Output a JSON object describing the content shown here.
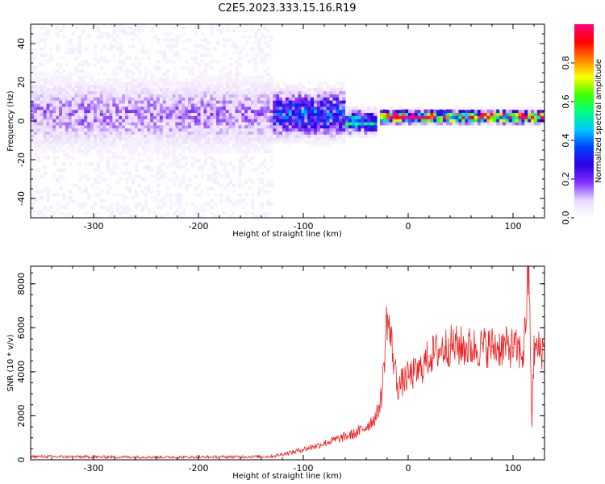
{
  "figure_title": "C2E5.2023.333.15.16.R19",
  "chart_data": [
    {
      "type": "heatmap",
      "name": "spectrogram",
      "xlabel": "Height of straight line (km)",
      "ylabel": "Frequency (Hz)",
      "xlim": [
        -360,
        130
      ],
      "ylim": [
        -50,
        50
      ],
      "x_ticks": [
        -300,
        -200,
        -100,
        0,
        100
      ],
      "x_tick_labels": [
        "-300",
        "-200",
        "-100",
        "0",
        "100"
      ],
      "y_ticks": [
        -40,
        -20,
        0,
        20,
        40
      ],
      "y_tick_labels": [
        "-40",
        "-20",
        "0",
        "20",
        "40"
      ],
      "colorbar": {
        "label": "Normalized spectral amplitude",
        "range": [
          0,
          1
        ],
        "ticks": [
          0.0,
          0.2,
          0.4,
          0.6,
          0.8
        ],
        "tick_labels": [
          "0.0",
          "0.2",
          "0.4",
          "0.6",
          "0.8"
        ],
        "colors": [
          "#ffffff",
          "#e8d8ff",
          "#8030ff",
          "#3000e0",
          "#0040ff",
          "#00c8ff",
          "#00ff80",
          "#40ff00",
          "#ffff00",
          "#ff8000",
          "#ff0000",
          "#ff0080"
        ]
      },
      "bands": [
        {
          "x_start": -360,
          "x_end": -130,
          "freq_center": 3,
          "freq_halfwidth": 12,
          "amplitude": 0.12,
          "noise_amplitude": 0.03
        },
        {
          "x_start": -130,
          "x_end": -60,
          "freq_center": 3,
          "freq_halfwidth": 8,
          "amplitude": 0.3
        },
        {
          "x_start": -60,
          "x_end": -30,
          "freq_center": -1,
          "freq_halfwidth": 4,
          "amplitude": 0.4
        },
        {
          "x_start": -28,
          "x_end": 128,
          "freq_center": 1.5,
          "freq_halfwidth": 2,
          "amplitude": 0.92
        }
      ],
      "grid": false
    },
    {
      "type": "line",
      "name": "snr",
      "xlabel": "Height of straight line (km)",
      "ylabel": "SNR (10 * v/v)",
      "xlim": [
        -360,
        130
      ],
      "ylim": [
        0,
        8800
      ],
      "x_ticks": [
        -300,
        -200,
        -100,
        0,
        100
      ],
      "x_tick_labels": [
        "-300",
        "-200",
        "-100",
        "0",
        "100"
      ],
      "y_ticks": [
        0,
        2000,
        4000,
        6000,
        8000
      ],
      "y_tick_labels": [
        "0",
        "2000",
        "4000",
        "6000",
        "8000"
      ],
      "series_color": "#ee2222",
      "x": [
        -360,
        -300,
        -200,
        -130,
        -110,
        -90,
        -70,
        -50,
        -40,
        -30,
        -25,
        -20,
        -10,
        0,
        10,
        20,
        30,
        40,
        60,
        80,
        100,
        110,
        115,
        118,
        120,
        130
      ],
      "values": [
        150,
        130,
        120,
        150,
        350,
        600,
        900,
        1200,
        1500,
        2000,
        3000,
        6600,
        3300,
        3800,
        4000,
        4700,
        5000,
        5200,
        5100,
        5150,
        5100,
        4800,
        8800,
        1700,
        5000,
        5000
      ],
      "grid": false
    }
  ]
}
